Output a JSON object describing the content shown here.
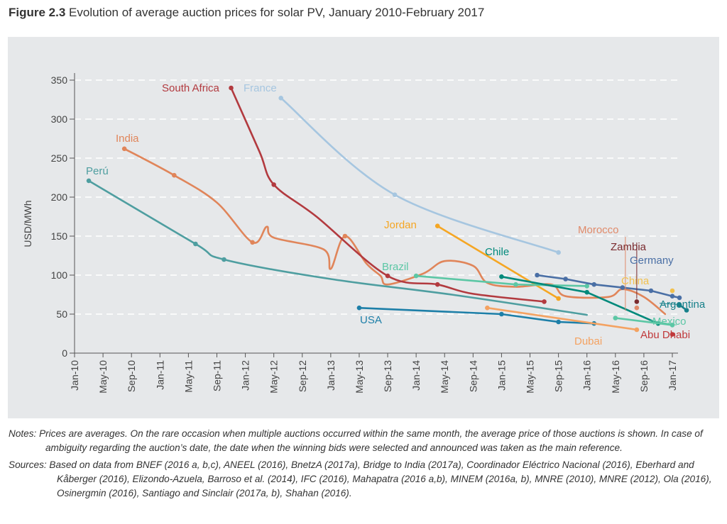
{
  "title": {
    "figure_number": "Figure 2.3",
    "text": "Evolution of average auction prices for solar PV, January 2010-February 2017"
  },
  "notes": "Notes: Prices are averages. On the rare occasion when multiple auctions occurred within the same month, the average price of those auctions is shown. In case of ambiguity regarding the auction’s date, the date when the winning bids were selected and announced was taken as the main reference.",
  "sources": "Sources: Based on data from BNEF (2016 a, b,c), ANEEL (2016), BnetzA (2017a), Bridge to India (2017a), Coordinador Eléctrico Nacional (2016), Eberhard and Kåberger (2016), Elizondo-Azuela, Barroso et al. (2014), IFC (2016), Mahapatra (2016 a,b), MINEM (2016a, b), MNRE (2010), MNRE (2012), Ola (2016), Osinergmin (2016), Santiago and Sinclair (2017a, b), Shahan (2016).",
  "chart_data": {
    "type": "line",
    "title": "Evolution of average auction prices for solar PV, January 2010-February 2017",
    "xlabel": "",
    "ylabel": "USD/MWh",
    "ylim": [
      0,
      350
    ],
    "xlim": [
      "2010-01",
      "2017-01"
    ],
    "yticks": [
      0,
      50,
      100,
      150,
      200,
      250,
      300,
      350
    ],
    "xticks": [
      "Jan-10",
      "May-10",
      "Sep-10",
      "Jan-11",
      "May-11",
      "Sep-11",
      "Jan-12",
      "May-12",
      "Sep-12",
      "Jan-13",
      "May-13",
      "Sep-13",
      "Jan-14",
      "May-14",
      "Sep-14",
      "Jan-15",
      "May-15",
      "Sep-15",
      "Jan-16",
      "May-16",
      "Sep-16",
      "Jan-17"
    ],
    "grid": "horizontal dashed",
    "colors": {
      "panel": "#e6e8ea",
      "axis": "#555555",
      "grid": "#ffffff"
    },
    "series": [
      {
        "name": "Perú",
        "color": "#4e9ea0",
        "markers": [
          0,
          1,
          2
        ],
        "points": [
          [
            "2010-03",
            221
          ],
          [
            "2011-06",
            140
          ],
          [
            "2011-10",
            120
          ],
          [
            "2013-01",
            95
          ],
          [
            "2014-06",
            75
          ],
          [
            "2016-01",
            49
          ]
        ]
      },
      {
        "name": "India",
        "color": "#e0855a",
        "markers": [
          0,
          1,
          3,
          8
        ],
        "points": [
          [
            "2010-08",
            262
          ],
          [
            "2011-03",
            228
          ],
          [
            "2011-09",
            193
          ],
          [
            "2012-02",
            142
          ],
          [
            "2012-04",
            162
          ],
          [
            "2012-05",
            148
          ],
          [
            "2012-12",
            133
          ],
          [
            "2013-01",
            108
          ],
          [
            "2013-03",
            150
          ],
          [
            "2013-06",
            115
          ],
          [
            "2013-08",
            99
          ],
          [
            "2013-09",
            88
          ],
          [
            "2014-02",
            102
          ],
          [
            "2014-05",
            118
          ],
          [
            "2014-09",
            112
          ],
          [
            "2014-11",
            90
          ],
          [
            "2015-03",
            85
          ],
          [
            "2015-08",
            88
          ],
          [
            "2015-10",
            73
          ],
          [
            "2016-04",
            72
          ],
          [
            "2016-06",
            82
          ],
          [
            "2016-09",
            72
          ],
          [
            "2016-12",
            50
          ]
        ]
      },
      {
        "name": "South Africa",
        "color": "#b23a3f",
        "markers": [
          0,
          2,
          4,
          5,
          7
        ],
        "points": [
          [
            "2011-11",
            340
          ],
          [
            "2012-03",
            258
          ],
          [
            "2012-05",
            216
          ],
          [
            "2012-11",
            175
          ],
          [
            "2013-09",
            99
          ],
          [
            "2014-04",
            88
          ],
          [
            "2014-09",
            76
          ],
          [
            "2015-07",
            66
          ]
        ]
      },
      {
        "name": "France",
        "color": "#a6c6e0",
        "markers": [
          0,
          1,
          2
        ],
        "points": [
          [
            "2012-06",
            327
          ],
          [
            "2013-10",
            203
          ],
          [
            "2015-09",
            129
          ]
        ]
      },
      {
        "name": "USA",
        "color": "#1d7fa8",
        "markers": [
          0,
          1,
          2,
          3
        ],
        "points": [
          [
            "2013-05",
            58
          ],
          [
            "2015-01",
            50
          ],
          [
            "2015-09",
            40
          ],
          [
            "2016-02",
            38
          ]
        ]
      },
      {
        "name": "Jordan",
        "color": "#f5a623",
        "markers": [
          0,
          1
        ],
        "points": [
          [
            "2014-04",
            163
          ],
          [
            "2015-09",
            70
          ]
        ]
      },
      {
        "name": "Brazil",
        "color": "#5cc7a5",
        "markers": [
          0,
          1,
          2
        ],
        "points": [
          [
            "2014-01",
            99
          ],
          [
            "2015-03",
            88
          ],
          [
            "2016-01",
            86
          ]
        ]
      },
      {
        "name": "Chile",
        "color": "#00897b",
        "markers": [
          0,
          1,
          2
        ],
        "points": [
          [
            "2015-01",
            98
          ],
          [
            "2016-01",
            78
          ],
          [
            "2016-11",
            38
          ]
        ]
      },
      {
        "name": "Germany",
        "color": "#4a6fa5",
        "markers": [
          0,
          1,
          2,
          3,
          4,
          5,
          6
        ],
        "points": [
          [
            "2015-06",
            100
          ],
          [
            "2015-10",
            95
          ],
          [
            "2016-02",
            88
          ],
          [
            "2016-06",
            84
          ],
          [
            "2016-10",
            80
          ],
          [
            "2017-01",
            73
          ],
          [
            "2017-02",
            71
          ]
        ]
      },
      {
        "name": "Mexico",
        "color": "#5cc7a5",
        "markers": [
          0,
          1
        ],
        "points": [
          [
            "2016-05",
            45
          ],
          [
            "2017-01",
            36
          ]
        ]
      },
      {
        "name": "Dubai",
        "color": "#f4a261",
        "markers": [
          0,
          1
        ],
        "points": [
          [
            "2014-11",
            58
          ],
          [
            "2016-08",
            30
          ]
        ]
      },
      {
        "name": "Argentina",
        "color": "#17808a",
        "markers": [
          0,
          1
        ],
        "points": [
          [
            "2017-02",
            62
          ],
          [
            "2017-03",
            55
          ]
        ]
      },
      {
        "name": "Morocco",
        "color": "#e08a6a",
        "markers": [
          0
        ],
        "points": [
          [
            "2016-08",
            58
          ]
        ]
      },
      {
        "name": "Zambia",
        "color": "#7a2a2e",
        "markers": [
          0
        ],
        "points": [
          [
            "2016-08",
            66
          ]
        ]
      },
      {
        "name": "China",
        "color": "#f2c14e",
        "markers": [
          0
        ],
        "points": [
          [
            "2017-01",
            80
          ]
        ]
      },
      {
        "name": "Abu Dhabi",
        "color": "#c0393b",
        "markers": [
          0
        ],
        "points": [
          [
            "2017-01",
            24
          ]
        ]
      }
    ]
  }
}
